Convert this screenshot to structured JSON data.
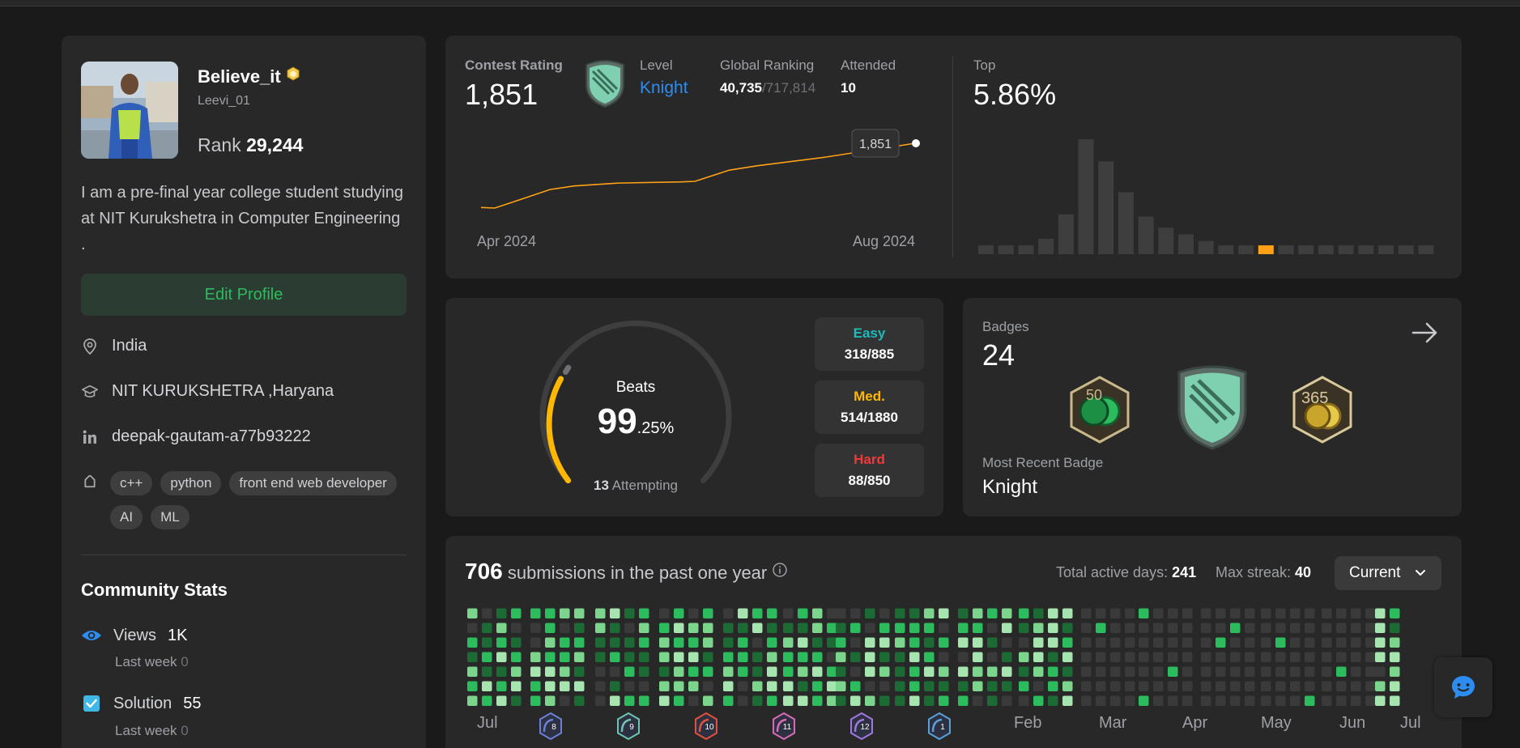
{
  "profile": {
    "username": "Believe_it",
    "handle": "Leevi_01",
    "rank_label": "Rank",
    "rank_value": "29,244",
    "bio": "I am a pre-final year college student studying at NIT Kurukshetra in Computer Engineering .",
    "edit_label": "Edit Profile",
    "location": "India",
    "school": "NIT KURUKSHETRA ,Haryana",
    "linkedin": "deepak-gautam-a77b93222",
    "skills": [
      "c++",
      "python",
      "front end web developer",
      "AI",
      "ML"
    ]
  },
  "community": {
    "title": "Community Stats",
    "views_label": "Views",
    "views_value": "1K",
    "views_last": "Last week",
    "views_last_value": "0",
    "solution_label": "Solution",
    "solution_value": "55",
    "solution_last": "Last week",
    "solution_last_value": "0"
  },
  "contest": {
    "rating_label": "Contest Rating",
    "rating_value": "1,851",
    "level_label": "Level",
    "level_value": "Knight",
    "global_label": "Global Ranking",
    "global_value": "40,735",
    "global_total": "/717,814",
    "attended_label": "Attended",
    "attended_value": "10",
    "tooltip_value": "1,851",
    "x_start": "Apr 2024",
    "x_end": "Aug 2024",
    "top_label": "Top",
    "top_value": "5.86%"
  },
  "chart_data": [
    {
      "type": "line",
      "x": [
        "Apr 2024",
        "",
        "",
        "",
        "",
        "",
        "",
        "",
        "",
        "",
        "Aug 2024"
      ],
      "series": [
        {
          "values": [
            1500,
            1496,
            1560,
            1625,
            1650,
            1670,
            1678,
            1682,
            1760,
            1790,
            1851
          ]
        }
      ],
      "xlabel": "",
      "ylabel": ""
    },
    {
      "type": "bar",
      "values": [
        4,
        4,
        4,
        7,
        18,
        52,
        42,
        28,
        17,
        12,
        9,
        6,
        4,
        4,
        4,
        4,
        4,
        4,
        4,
        4,
        4,
        4,
        4
      ],
      "highlight_index": 14,
      "highlight_color": "#ffa116"
    }
  ],
  "problems": {
    "beats_label": "Beats",
    "beats_int": "99",
    "beats_dec": ".25%",
    "attempting_count": "13",
    "attempting_label": "Attempting",
    "easy_label": "Easy",
    "easy_value": "318/885",
    "med_label": "Med.",
    "med_value": "514/1880",
    "hard_label": "Hard",
    "hard_value": "88/850",
    "easy_color": "#1cbaba",
    "med_color": "#ffb700",
    "hard_color": "#f63737"
  },
  "badges": {
    "title": "Badges",
    "count": "24",
    "recent_label": "Most Recent Badge",
    "recent_name": "Knight",
    "arrow_icon": "arrow-right-icon"
  },
  "submissions": {
    "count": "706",
    "title_rest": "submissions in the past one year",
    "active_label": "Total active days:",
    "active_value": "241",
    "streak_label": "Max streak:",
    "streak_value": "40",
    "dropdown": "Current",
    "months": [
      "Jul",
      "Feb",
      "Mar",
      "Apr",
      "May",
      "Jun",
      "Jul"
    ],
    "month_badges": [
      "8",
      "9",
      "10",
      "11",
      "12",
      "1"
    ]
  },
  "colors": {
    "accent": "#ffa116",
    "green": "#2cbb5d",
    "blue": "#2d8cf0"
  }
}
